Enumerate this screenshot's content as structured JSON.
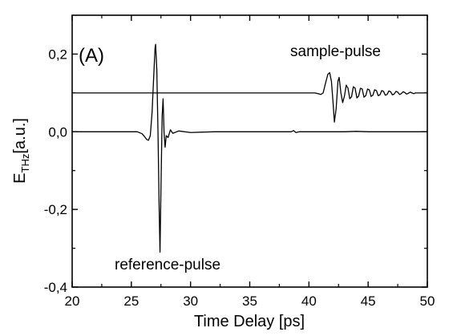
{
  "chart_data": {
    "type": "line",
    "panel_label": "(A)",
    "xlabel": "Time Delay [ps]",
    "ylabel_main": "E",
    "ylabel_sub": "THz",
    "ylabel_unit": "[a.u.]",
    "xlim": [
      20,
      50
    ],
    "ylim": [
      -0.4,
      0.3
    ],
    "x_ticks": [
      {
        "value": 20,
        "label": "20"
      },
      {
        "value": 25,
        "label": "25"
      },
      {
        "value": 30,
        "label": "30"
      },
      {
        "value": 35,
        "label": "35"
      },
      {
        "value": 40,
        "label": "40"
      },
      {
        "value": 45,
        "label": "45"
      },
      {
        "value": 50,
        "label": "50"
      }
    ],
    "y_ticks": [
      {
        "value": -0.4,
        "label": "-0,4"
      },
      {
        "value": -0.2,
        "label": "-0,2"
      },
      {
        "value": 0.0,
        "label": "0,0"
      },
      {
        "value": 0.2,
        "label": "0,2"
      }
    ],
    "annotations": {
      "sample": "sample-pulse",
      "reference": "reference-pulse"
    },
    "grid": false,
    "series": [
      {
        "color": "#000000",
        "points": [
          [
            20,
            0.0
          ],
          [
            25.0,
            0.0
          ],
          [
            25.5,
            0.0
          ],
          [
            25.9,
            -0.005
          ],
          [
            26.1,
            -0.012
          ],
          [
            26.3,
            -0.02
          ],
          [
            26.45,
            -0.022
          ],
          [
            26.6,
            -0.01
          ],
          [
            26.75,
            0.05
          ],
          [
            26.9,
            0.15
          ],
          [
            27.0,
            0.215
          ],
          [
            27.05,
            0.225
          ],
          [
            27.15,
            0.16
          ],
          [
            27.25,
            0.0
          ],
          [
            27.35,
            -0.2
          ],
          [
            27.42,
            -0.31
          ],
          [
            27.5,
            -0.15
          ],
          [
            27.6,
            0.04
          ],
          [
            27.68,
            0.085
          ],
          [
            27.76,
            0.0
          ],
          [
            27.85,
            -0.04
          ],
          [
            27.95,
            -0.01
          ],
          [
            28.1,
            -0.015
          ],
          [
            28.3,
            0.005
          ],
          [
            28.5,
            -0.004
          ],
          [
            29.0,
            0.002
          ],
          [
            30.0,
            -0.002
          ],
          [
            32.0,
            0.0
          ],
          [
            35.0,
            0.0
          ],
          [
            38.5,
            0.0
          ],
          [
            38.7,
            0.003
          ],
          [
            38.9,
            -0.002
          ],
          [
            39.2,
            0.0
          ],
          [
            43.0,
            0.0
          ],
          [
            44.0,
            0.001
          ],
          [
            45.0,
            0.0
          ],
          [
            50,
            0.0
          ]
        ]
      },
      {
        "color": "#000000",
        "points": [
          [
            20,
            0.1
          ],
          [
            40.5,
            0.1
          ],
          [
            40.8,
            0.098
          ],
          [
            41.0,
            0.096
          ],
          [
            41.2,
            0.1
          ],
          [
            41.4,
            0.125
          ],
          [
            41.6,
            0.148
          ],
          [
            41.75,
            0.152
          ],
          [
            41.9,
            0.13
          ],
          [
            42.05,
            0.07
          ],
          [
            42.15,
            0.025
          ],
          [
            42.3,
            0.06
          ],
          [
            42.45,
            0.13
          ],
          [
            42.55,
            0.14
          ],
          [
            42.7,
            0.1
          ],
          [
            42.85,
            0.075
          ],
          [
            43.0,
            0.092
          ],
          [
            43.15,
            0.12
          ],
          [
            43.3,
            0.112
          ],
          [
            43.45,
            0.085
          ],
          [
            43.6,
            0.09
          ],
          [
            43.75,
            0.116
          ],
          [
            43.9,
            0.112
          ],
          [
            44.05,
            0.087
          ],
          [
            44.2,
            0.092
          ],
          [
            44.35,
            0.112
          ],
          [
            44.5,
            0.11
          ],
          [
            44.65,
            0.089
          ],
          [
            44.8,
            0.093
          ],
          [
            44.95,
            0.11
          ],
          [
            45.1,
            0.108
          ],
          [
            45.25,
            0.091
          ],
          [
            45.4,
            0.094
          ],
          [
            45.55,
            0.108
          ],
          [
            45.7,
            0.106
          ],
          [
            45.85,
            0.093
          ],
          [
            46.0,
            0.095
          ],
          [
            46.15,
            0.106
          ],
          [
            46.3,
            0.104
          ],
          [
            46.45,
            0.094
          ],
          [
            46.6,
            0.096
          ],
          [
            46.75,
            0.105
          ],
          [
            46.9,
            0.103
          ],
          [
            47.05,
            0.095
          ],
          [
            47.2,
            0.097
          ],
          [
            47.35,
            0.104
          ],
          [
            47.5,
            0.102
          ],
          [
            47.65,
            0.096
          ],
          [
            47.8,
            0.098
          ],
          [
            47.95,
            0.103
          ],
          [
            48.1,
            0.101
          ],
          [
            48.25,
            0.097
          ],
          [
            48.4,
            0.099
          ],
          [
            48.55,
            0.102
          ],
          [
            48.7,
            0.1
          ],
          [
            48.85,
            0.098
          ],
          [
            49.0,
            0.1
          ],
          [
            50,
            0.1
          ]
        ]
      }
    ]
  }
}
